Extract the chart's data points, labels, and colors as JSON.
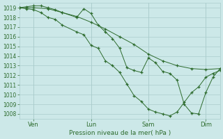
{
  "xlabel": "Pression niveau de la mer( hPa )",
  "background_color": "#cce8e8",
  "grid_color": "#aacccc",
  "line_color": "#2d6b2d",
  "ylim": [
    1007.5,
    1019.5
  ],
  "yticks": [
    1008,
    1009,
    1010,
    1011,
    1012,
    1013,
    1014,
    1015,
    1016,
    1017,
    1018,
    1019
  ],
  "xlim": [
    0,
    168
  ],
  "xtick_pos": [
    12,
    60,
    108,
    156
  ],
  "xtick_labels": [
    "Ven",
    "Lun",
    "Sam",
    "Dim"
  ],
  "line1_x": [
    0,
    12,
    24,
    36,
    48,
    60,
    72,
    84,
    96,
    108,
    120,
    132,
    144,
    156,
    168
  ],
  "line1_y": [
    1019.0,
    1019.0,
    1018.9,
    1018.5,
    1018.1,
    1017.5,
    1016.8,
    1016.0,
    1015.2,
    1014.2,
    1013.5,
    1013.0,
    1012.7,
    1012.6,
    1012.7
  ],
  "line2_x": [
    0,
    6,
    12,
    18,
    24,
    30,
    36,
    48,
    54,
    60,
    66,
    72,
    78,
    84,
    90,
    96,
    102,
    108,
    114,
    120,
    126,
    132,
    138,
    144,
    150,
    156,
    162,
    168
  ],
  "line2_y": [
    1019.0,
    1019.1,
    1019.2,
    1019.2,
    1019.0,
    1018.8,
    1018.5,
    1018.0,
    1018.9,
    1018.4,
    1017.2,
    1016.5,
    1015.8,
    1014.8,
    1012.8,
    1012.5,
    1012.3,
    1013.8,
    1013.3,
    1012.4,
    1012.2,
    1011.5,
    1009.0,
    1008.1,
    1008.0,
    1010.2,
    1011.8,
    1012.7
  ],
  "line3_x": [
    0,
    6,
    12,
    18,
    24,
    30,
    36,
    48,
    54,
    60,
    66,
    72,
    78,
    84,
    90,
    96,
    102,
    108,
    114,
    120,
    126,
    132,
    138,
    144,
    150,
    156,
    162,
    168
  ],
  "line3_y": [
    1019.0,
    1018.9,
    1018.8,
    1018.5,
    1018.0,
    1017.8,
    1017.2,
    1016.5,
    1016.2,
    1015.1,
    1014.8,
    1013.5,
    1013.0,
    1012.3,
    1011.1,
    1009.9,
    1009.3,
    1008.5,
    1008.2,
    1008.0,
    1007.8,
    1008.2,
    1009.2,
    1010.2,
    1010.8,
    1011.8,
    1012.2,
    1012.5
  ],
  "figsize": [
    3.2,
    2.0
  ],
  "dpi": 100
}
